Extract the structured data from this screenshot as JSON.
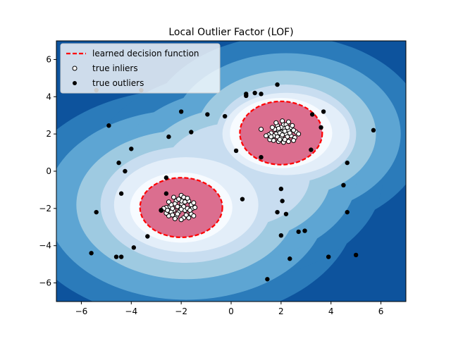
{
  "colors": {
    "level_0": "#f7fbff",
    "level_1": "#e3eef9",
    "level_2": "#c8ddf0",
    "level_3": "#9ecae1",
    "level_4": "#5da5d3",
    "level_5": "#2b7bba",
    "level_6": "#0d539d",
    "level_7": "#08306b",
    "inlier_region": "#db6e8f",
    "decision_line": "#ff0000",
    "outlier": "#000000",
    "inlier_face": "#ffffff"
  },
  "chart_data": {
    "type": "scatter",
    "title": "Local Outlier Factor (LOF)",
    "xlabel": "",
    "ylabel": "",
    "xlim": [
      -7,
      7
    ],
    "ylim": [
      -7,
      7
    ],
    "xticks": [
      -6,
      -4,
      -2,
      0,
      2,
      4,
      6
    ],
    "yticks": [
      -6,
      -4,
      -2,
      0,
      2,
      4,
      6
    ],
    "grid": false,
    "legend": {
      "position": "top-left",
      "entries": [
        "learned decision function",
        "true inliers",
        "true outliers"
      ]
    },
    "clusters": [
      {
        "center": [
          -2,
          -2
        ],
        "spread": 0.3,
        "count": 100
      },
      {
        "center": [
          2,
          2
        ],
        "spread": 0.3,
        "count": 100
      }
    ],
    "decision_boundary": [
      {
        "center": [
          -2,
          -1.95
        ],
        "rx": 1.65,
        "ry": 1.6
      },
      {
        "center": [
          2,
          2.05
        ],
        "rx": 1.65,
        "ry": 1.7
      }
    ],
    "contour_levels": [
      [
        {
          "c": [
            -1.8,
            -1.8
          ],
          "rx": 4.4,
          "ry": 4.0
        },
        {
          "c": [
            2.2,
            2.0
          ],
          "rx": 3.6,
          "ry": 3.4
        },
        {
          "c": [
            0.2,
            -0.2
          ],
          "rx": 3.8,
          "ry": 3.6
        }
      ],
      [
        {
          "c": [
            -1.8,
            -1.8
          ],
          "rx": 3.4,
          "ry": 3.0
        },
        {
          "c": [
            2.2,
            2.0
          ],
          "rx": 3.0,
          "ry": 2.6
        }
      ],
      [
        {
          "c": [
            -2,
            -1.95
          ],
          "rx": 2.5,
          "ry": 2.3
        },
        {
          "c": [
            2,
            2.05
          ],
          "rx": 2.5,
          "ry": 2.3
        }
      ]
    ],
    "inliers": [
      [
        -2.07,
        -1.95
      ],
      [
        -1.98,
        -1.75
      ],
      [
        -1.98,
        -1.6
      ],
      [
        -2.3,
        -2.1
      ],
      [
        -2.45,
        -1.9
      ],
      [
        -2.6,
        -1.95
      ],
      [
        -2.4,
        -2.2
      ],
      [
        -1.9,
        -2.5
      ],
      [
        -2.2,
        -2.45
      ],
      [
        -1.6,
        -2.3
      ],
      [
        -1.7,
        -1.6
      ],
      [
        -1.6,
        -1.8
      ],
      [
        -2.2,
        -1.6
      ],
      [
        -2.3,
        -1.4
      ],
      [
        -2.0,
        -1.3
      ],
      [
        -1.9,
        -1.4
      ],
      [
        -1.75,
        -1.45
      ],
      [
        -1.55,
        -2.0
      ],
      [
        -1.45,
        -1.95
      ],
      [
        -2.7,
        -2.0
      ],
      [
        -2.8,
        -2.1
      ],
      [
        -2.5,
        -2.4
      ],
      [
        -2.35,
        -2.35
      ],
      [
        -2.1,
        -2.2
      ],
      [
        -1.85,
        -2.1
      ],
      [
        -2.0,
        -2.6
      ],
      [
        -1.7,
        -2.5
      ],
      [
        -1.5,
        -2.4
      ],
      [
        -2.6,
        -2.25
      ],
      [
        -2.25,
        -1.75
      ],
      [
        -2.15,
        -1.9
      ],
      [
        -1.9,
        -1.9
      ],
      [
        -1.75,
        -2.0
      ],
      [
        -1.65,
        -2.1
      ],
      [
        -2.35,
        -2.0
      ],
      [
        -2.55,
        -2.1
      ],
      [
        -2.0,
        -2.05
      ],
      [
        -1.8,
        -2.35
      ],
      [
        -2.15,
        -2.3
      ],
      [
        -2.4,
        -1.8
      ],
      [
        -2.1,
        -1.5
      ],
      [
        -1.85,
        -1.65
      ],
      [
        -1.5,
        -1.7
      ],
      [
        -2.5,
        -1.65
      ],
      [
        -2.25,
        -2.55
      ],
      [
        2.0,
        2.1
      ],
      [
        1.9,
        2.2
      ],
      [
        2.2,
        2.0
      ],
      [
        2.1,
        2.3
      ],
      [
        1.8,
        2.0
      ],
      [
        2.3,
        2.2
      ],
      [
        2.0,
        1.8
      ],
      [
        1.7,
        1.9
      ],
      [
        2.4,
        1.9
      ],
      [
        2.1,
        2.5
      ],
      [
        1.85,
        2.45
      ],
      [
        2.2,
        2.5
      ],
      [
        2.05,
        2.7
      ],
      [
        1.6,
        2.05
      ],
      [
        1.5,
        1.95
      ],
      [
        1.4,
        1.9
      ],
      [
        2.4,
        2.35
      ],
      [
        2.6,
        2.1
      ],
      [
        2.55,
        1.8
      ],
      [
        2.5,
        1.65
      ],
      [
        2.3,
        1.6
      ],
      [
        2.1,
        1.55
      ],
      [
        1.9,
        1.6
      ],
      [
        1.7,
        1.65
      ],
      [
        1.55,
        1.7
      ],
      [
        2.25,
        1.85
      ],
      [
        2.35,
        2.05
      ],
      [
        1.95,
        2.05
      ],
      [
        1.75,
        2.25
      ],
      [
        1.65,
        2.35
      ],
      [
        2.0,
        2.35
      ],
      [
        2.15,
        2.15
      ],
      [
        1.85,
        1.85
      ],
      [
        2.45,
        2.45
      ],
      [
        2.7,
        2.0
      ],
      [
        1.2,
        2.25
      ],
      [
        2.3,
        2.65
      ],
      [
        1.95,
        1.7
      ],
      [
        2.15,
        1.7
      ],
      [
        1.8,
        2.6
      ],
      [
        2.5,
        2.2
      ],
      [
        1.6,
        1.85
      ],
      [
        2.05,
        1.95
      ],
      [
        2.25,
        2.35
      ],
      [
        1.9,
        2.3
      ]
    ],
    "outliers": [
      [
        -5.4,
        4.35
      ],
      [
        -3.6,
        4.35
      ],
      [
        -4.9,
        2.45
      ],
      [
        -4.0,
        1.2
      ],
      [
        -4.5,
        0.45
      ],
      [
        -4.25,
        0.0
      ],
      [
        -2.0,
        3.2
      ],
      [
        -1.6,
        2.1
      ],
      [
        -2.5,
        1.85
      ],
      [
        -0.95,
        3.05
      ],
      [
        -0.25,
        2.95
      ],
      [
        0.6,
        4.05
      ],
      [
        0.6,
        4.15
      ],
      [
        0.95,
        4.2
      ],
      [
        1.2,
        4.15
      ],
      [
        1.85,
        4.65
      ],
      [
        3.25,
        3.05
      ],
      [
        3.7,
        3.2
      ],
      [
        3.6,
        2.35
      ],
      [
        3.2,
        1.15
      ],
      [
        1.2,
        0.75
      ],
      [
        0.2,
        1.1
      ],
      [
        5.7,
        2.2
      ],
      [
        4.65,
        0.45
      ],
      [
        4.5,
        -0.75
      ],
      [
        4.65,
        -2.2
      ],
      [
        -5.4,
        -2.2
      ],
      [
        -4.4,
        -1.2
      ],
      [
        -2.6,
        -0.35
      ],
      [
        -2.6,
        -1.2
      ],
      [
        -2.8,
        -2.1
      ],
      [
        -3.35,
        -3.5
      ],
      [
        -3.9,
        -4.1
      ],
      [
        -5.6,
        -4.4
      ],
      [
        -4.6,
        -4.6
      ],
      [
        -4.4,
        -4.6
      ],
      [
        0.45,
        -1.5
      ],
      [
        2.0,
        -0.95
      ],
      [
        2.05,
        -1.6
      ],
      [
        1.85,
        -2.2
      ],
      [
        2.2,
        -2.3
      ],
      [
        2.0,
        -3.45
      ],
      [
        2.7,
        -3.25
      ],
      [
        2.95,
        -3.2
      ],
      [
        2.35,
        -4.7
      ],
      [
        3.9,
        -4.6
      ],
      [
        5.0,
        -4.5
      ],
      [
        1.45,
        -5.8
      ]
    ]
  }
}
